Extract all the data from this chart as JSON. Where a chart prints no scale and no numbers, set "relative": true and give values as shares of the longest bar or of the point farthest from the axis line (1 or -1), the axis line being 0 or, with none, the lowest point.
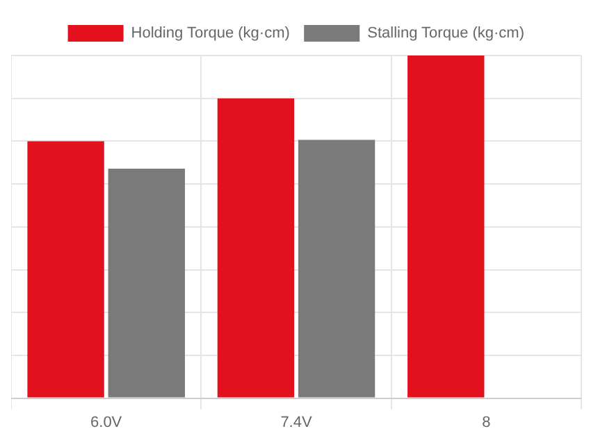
{
  "chart_data": {
    "type": "bar",
    "categories": [
      "6.0V",
      "7.4V",
      "8"
    ],
    "relative": true,
    "series": [
      {
        "name": "Holding Torque (kg·cm)",
        "color": "#e3101e",
        "values": [
          0.75,
          0.875,
          1
        ]
      },
      {
        "name": "Stalling Torque (kg·cm)",
        "color": "#7a7a7a",
        "values": [
          0.67,
          0.754,
          null
        ]
      }
    ],
    "grid": true,
    "legend": "top"
  }
}
